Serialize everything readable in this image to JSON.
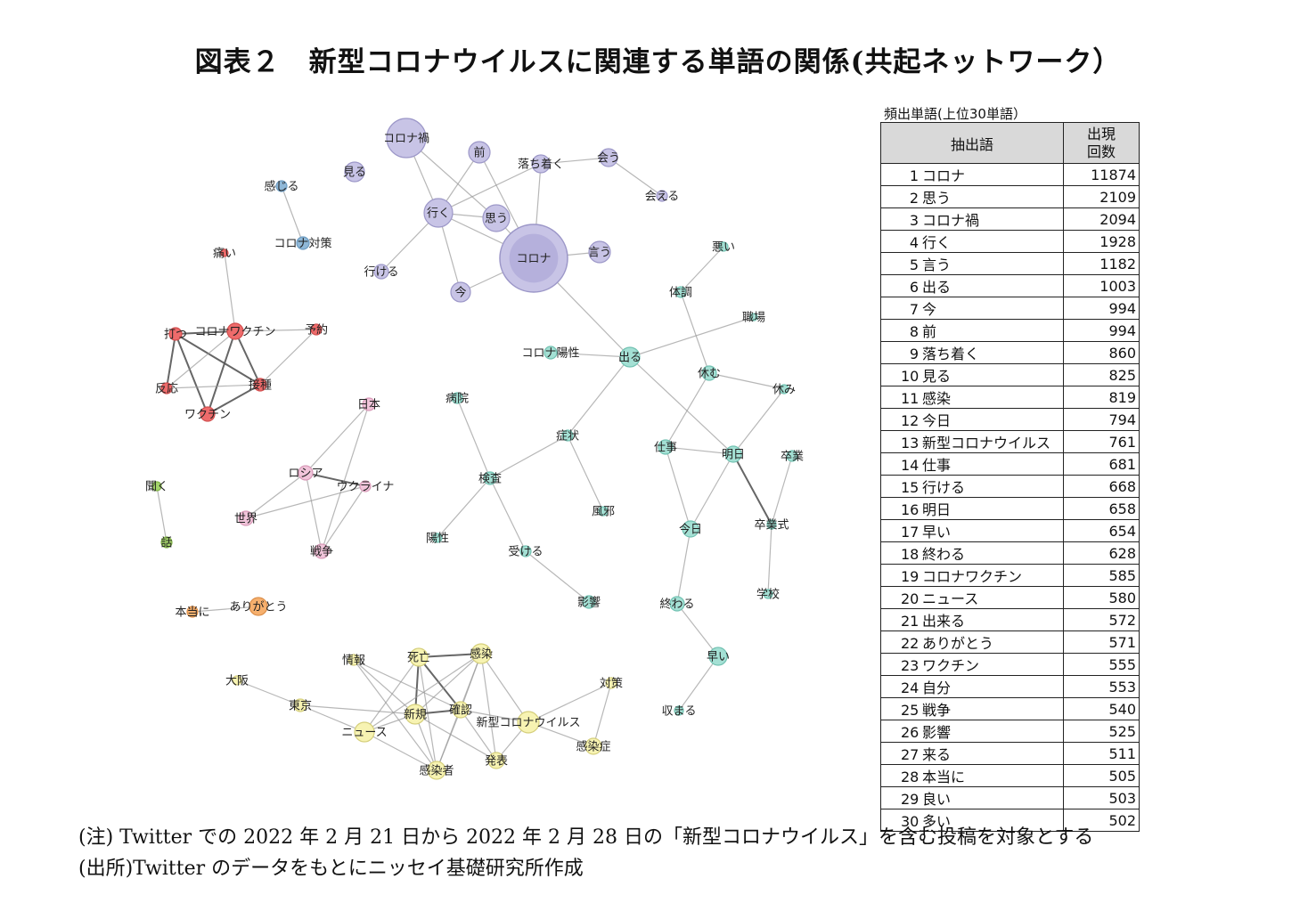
{
  "title": "図表２　新型コロナウイルスに関連する単語の関係(共起ネットワーク）",
  "network": {
    "edge_color": "#999999",
    "edge_strong_color": "#555555",
    "groups": {
      "purple": {
        "fill": "#c8c4e6",
        "stroke": "#9c97c8"
      },
      "blue": {
        "fill": "#8fb8d8",
        "stroke": "#6d9cc2"
      },
      "red": {
        "fill": "#ee6b6b",
        "stroke": "#d24f4f"
      },
      "pink": {
        "fill": "#f1c4da",
        "stroke": "#d89ab8"
      },
      "teal": {
        "fill": "#a4e0d4",
        "stroke": "#72c2b2"
      },
      "green": {
        "fill": "#a4d46a",
        "stroke": "#82b448"
      },
      "orange": {
        "fill": "#f6b06e",
        "stroke": "#dc8f4a"
      },
      "yellow": {
        "fill": "#f7f3b2",
        "stroke": "#d5cf7c"
      }
    },
    "nodes": [
      {
        "id": "n1",
        "label": "コロナ禍",
        "group": "purple"
      },
      {
        "id": "n2",
        "label": "前",
        "group": "purple"
      },
      {
        "id": "n3",
        "label": "落ち着く",
        "group": "purple"
      },
      {
        "id": "n4",
        "label": "会う",
        "group": "purple"
      },
      {
        "id": "n5",
        "label": "会える",
        "group": "purple"
      },
      {
        "id": "n6",
        "label": "見る",
        "group": "purple"
      },
      {
        "id": "n7",
        "label": "行く",
        "group": "purple"
      },
      {
        "id": "n8",
        "label": "思う",
        "group": "purple"
      },
      {
        "id": "n9",
        "label": "コロナ",
        "group": "purple"
      },
      {
        "id": "n10",
        "label": "言う",
        "group": "purple"
      },
      {
        "id": "n11",
        "label": "行ける",
        "group": "purple"
      },
      {
        "id": "n12",
        "label": "今",
        "group": "purple"
      },
      {
        "id": "n13",
        "label": "感じる",
        "group": "blue"
      },
      {
        "id": "n14",
        "label": "コロナ対策",
        "group": "blue"
      },
      {
        "id": "n15",
        "label": "痛い",
        "group": "red"
      },
      {
        "id": "n16",
        "label": "打つ",
        "group": "red"
      },
      {
        "id": "n17",
        "label": "コロナワクチン",
        "group": "red"
      },
      {
        "id": "n18",
        "label": "予約",
        "group": "red"
      },
      {
        "id": "n19",
        "label": "反応",
        "group": "red"
      },
      {
        "id": "n20",
        "label": "接種",
        "group": "red"
      },
      {
        "id": "n21",
        "label": "ワクチン",
        "group": "red"
      },
      {
        "id": "n22",
        "label": "日本",
        "group": "pink"
      },
      {
        "id": "n23",
        "label": "ロシア",
        "group": "pink"
      },
      {
        "id": "n24",
        "label": "ウクライナ",
        "group": "pink"
      },
      {
        "id": "n25",
        "label": "世界",
        "group": "pink"
      },
      {
        "id": "n26",
        "label": "戦争",
        "group": "pink"
      },
      {
        "id": "n27",
        "label": "悪い",
        "group": "teal"
      },
      {
        "id": "n28",
        "label": "体調",
        "group": "teal"
      },
      {
        "id": "n29",
        "label": "職場",
        "group": "teal"
      },
      {
        "id": "n30",
        "label": "コロナ陽性",
        "group": "teal"
      },
      {
        "id": "n31",
        "label": "出る",
        "group": "teal"
      },
      {
        "id": "n32",
        "label": "休む",
        "group": "teal"
      },
      {
        "id": "n33",
        "label": "休み",
        "group": "teal"
      },
      {
        "id": "n34",
        "label": "病院",
        "group": "teal"
      },
      {
        "id": "n35",
        "label": "症状",
        "group": "teal"
      },
      {
        "id": "n36",
        "label": "仕事",
        "group": "teal"
      },
      {
        "id": "n37",
        "label": "明日",
        "group": "teal"
      },
      {
        "id": "n38",
        "label": "卒業",
        "group": "teal"
      },
      {
        "id": "n39",
        "label": "検査",
        "group": "teal"
      },
      {
        "id": "n40",
        "label": "風邪",
        "group": "teal"
      },
      {
        "id": "n41",
        "label": "今日",
        "group": "teal"
      },
      {
        "id": "n42",
        "label": "卒業式",
        "group": "teal"
      },
      {
        "id": "n43",
        "label": "陽性",
        "group": "teal"
      },
      {
        "id": "n44",
        "label": "受ける",
        "group": "teal"
      },
      {
        "id": "n45",
        "label": "学校",
        "group": "teal"
      },
      {
        "id": "n46",
        "label": "影響",
        "group": "teal"
      },
      {
        "id": "n47",
        "label": "終わる",
        "group": "teal"
      },
      {
        "id": "n48",
        "label": "早い",
        "group": "teal"
      },
      {
        "id": "n49",
        "label": "収まる",
        "group": "teal"
      },
      {
        "id": "n50",
        "label": "聞く",
        "group": "green"
      },
      {
        "id": "n51",
        "label": "話",
        "group": "green"
      },
      {
        "id": "n52",
        "label": "本当に",
        "group": "orange"
      },
      {
        "id": "n53",
        "label": "ありがとう",
        "group": "orange"
      },
      {
        "id": "n54",
        "label": "情報",
        "group": "yellow"
      },
      {
        "id": "n55",
        "label": "死亡",
        "group": "yellow"
      },
      {
        "id": "n56",
        "label": "感染",
        "group": "yellow"
      },
      {
        "id": "n57",
        "label": "大阪",
        "group": "yellow"
      },
      {
        "id": "n58",
        "label": "対策",
        "group": "yellow"
      },
      {
        "id": "n59",
        "label": "東京",
        "group": "yellow"
      },
      {
        "id": "n60",
        "label": "新規",
        "group": "yellow"
      },
      {
        "id": "n61",
        "label": "確認",
        "group": "yellow"
      },
      {
        "id": "n62",
        "label": "新型コロナウイルス",
        "group": "yellow"
      },
      {
        "id": "n63",
        "label": "ニュース",
        "group": "yellow"
      },
      {
        "id": "n64",
        "label": "感染症",
        "group": "yellow"
      },
      {
        "id": "n65",
        "label": "感染者",
        "group": "yellow"
      },
      {
        "id": "n66",
        "label": "発表",
        "group": "yellow"
      }
    ],
    "edges": [
      [
        "n1",
        "n7",
        1
      ],
      [
        "n1",
        "n8",
        1
      ],
      [
        "n2",
        "n7",
        1
      ],
      [
        "n2",
        "n9",
        1
      ],
      [
        "n3",
        "n7",
        1
      ],
      [
        "n3",
        "n9",
        1
      ],
      [
        "n3",
        "n4",
        1
      ],
      [
        "n4",
        "n5",
        1
      ],
      [
        "n7",
        "n8",
        1
      ],
      [
        "n7",
        "n9",
        1
      ],
      [
        "n8",
        "n9",
        1
      ],
      [
        "n9",
        "n10",
        1
      ],
      [
        "n9",
        "n12",
        1
      ],
      [
        "n7",
        "n11",
        1
      ],
      [
        "n7",
        "n12",
        1
      ],
      [
        "n9",
        "n31",
        1
      ],
      [
        "n13",
        "n14",
        1
      ],
      [
        "n15",
        "n17",
        1
      ],
      [
        "n16",
        "n17",
        2
      ],
      [
        "n16",
        "n19",
        2
      ],
      [
        "n16",
        "n21",
        2
      ],
      [
        "n16",
        "n20",
        2
      ],
      [
        "n17",
        "n18",
        1
      ],
      [
        "n17",
        "n20",
        2
      ],
      [
        "n17",
        "n21",
        2
      ],
      [
        "n17",
        "n19",
        1
      ],
      [
        "n18",
        "n20",
        1
      ],
      [
        "n19",
        "n20",
        1
      ],
      [
        "n20",
        "n21",
        2
      ],
      [
        "n22",
        "n23",
        1
      ],
      [
        "n22",
        "n26",
        1
      ],
      [
        "n23",
        "n24",
        2
      ],
      [
        "n23",
        "n25",
        1
      ],
      [
        "n23",
        "n26",
        1
      ],
      [
        "n24",
        "n25",
        1
      ],
      [
        "n24",
        "n26",
        1
      ],
      [
        "n27",
        "n28",
        1
      ],
      [
        "n28",
        "n32",
        1
      ],
      [
        "n29",
        "n31",
        1
      ],
      [
        "n30",
        "n31",
        1
      ],
      [
        "n31",
        "n35",
        1
      ],
      [
        "n31",
        "n37",
        1
      ],
      [
        "n32",
        "n33",
        1
      ],
      [
        "n32",
        "n36",
        1
      ],
      [
        "n34",
        "n39",
        1
      ],
      [
        "n35",
        "n39",
        1
      ],
      [
        "n35",
        "n40",
        1
      ],
      [
        "n39",
        "n43",
        1
      ],
      [
        "n39",
        "n44",
        1
      ],
      [
        "n44",
        "n46",
        1
      ],
      [
        "n36",
        "n37",
        1
      ],
      [
        "n37",
        "n41",
        1
      ],
      [
        "n37",
        "n42",
        2
      ],
      [
        "n38",
        "n42",
        1
      ],
      [
        "n33",
        "n37",
        1
      ],
      [
        "n41",
        "n36",
        1
      ],
      [
        "n41",
        "n47",
        1
      ],
      [
        "n47",
        "n48",
        1
      ],
      [
        "n48",
        "n49",
        1
      ],
      [
        "n42",
        "n45",
        1
      ],
      [
        "n50",
        "n51",
        1
      ],
      [
        "n52",
        "n53",
        1
      ],
      [
        "n54",
        "n60",
        1
      ],
      [
        "n55",
        "n56",
        2
      ],
      [
        "n55",
        "n60",
        2
      ],
      [
        "n55",
        "n61",
        2
      ],
      [
        "n55",
        "n63",
        1
      ],
      [
        "n55",
        "n65",
        1
      ],
      [
        "n56",
        "n60",
        1
      ],
      [
        "n56",
        "n61",
        1
      ],
      [
        "n56",
        "n62",
        1
      ],
      [
        "n56",
        "n63",
        1
      ],
      [
        "n56",
        "n65",
        1
      ],
      [
        "n56",
        "n66",
        1
      ],
      [
        "n57",
        "n59",
        1
      ],
      [
        "n59",
        "n63",
        1
      ],
      [
        "n60",
        "n61",
        2
      ],
      [
        "n60",
        "n63",
        1
      ],
      [
        "n60",
        "n65",
        1
      ],
      [
        "n60",
        "n66",
        1
      ],
      [
        "n61",
        "n62",
        1
      ],
      [
        "n61",
        "n65",
        1
      ],
      [
        "n61",
        "n66",
        1
      ],
      [
        "n62",
        "n64",
        1
      ],
      [
        "n62",
        "n58",
        1
      ],
      [
        "n58",
        "n64",
        1
      ],
      [
        "n62",
        "n66",
        1
      ],
      [
        "n63",
        "n65",
        1
      ],
      [
        "n54",
        "n65",
        1
      ],
      [
        "n54",
        "n61",
        1
      ],
      [
        "n59",
        "n60",
        1
      ]
    ]
  },
  "freq_table": {
    "caption": "頻出単語(上位30単語）",
    "header_word": "抽出語",
    "header_count_line1": "出現",
    "header_count_line2": "回数",
    "rows": [
      {
        "rank": "1",
        "word": "コロナ",
        "count": "11874"
      },
      {
        "rank": "2",
        "word": "思う",
        "count": "2109"
      },
      {
        "rank": "3",
        "word": "コロナ禍",
        "count": "2094"
      },
      {
        "rank": "4",
        "word": "行く",
        "count": "1928"
      },
      {
        "rank": "5",
        "word": "言う",
        "count": "1182"
      },
      {
        "rank": "6",
        "word": "出る",
        "count": "1003"
      },
      {
        "rank": "7",
        "word": "今",
        "count": "994"
      },
      {
        "rank": "8",
        "word": "前",
        "count": "994"
      },
      {
        "rank": "9",
        "word": "落ち着く",
        "count": "860"
      },
      {
        "rank": "10",
        "word": "見る",
        "count": "825"
      },
      {
        "rank": "11",
        "word": "感染",
        "count": "819"
      },
      {
        "rank": "12",
        "word": "今日",
        "count": "794"
      },
      {
        "rank": "13",
        "word": "新型コロナウイルス",
        "count": "761"
      },
      {
        "rank": "14",
        "word": "仕事",
        "count": "681"
      },
      {
        "rank": "15",
        "word": "行ける",
        "count": "668"
      },
      {
        "rank": "16",
        "word": "明日",
        "count": "658"
      },
      {
        "rank": "17",
        "word": "早い",
        "count": "654"
      },
      {
        "rank": "18",
        "word": "終わる",
        "count": "628"
      },
      {
        "rank": "19",
        "word": "コロナワクチン",
        "count": "585"
      },
      {
        "rank": "20",
        "word": "ニュース",
        "count": "580"
      },
      {
        "rank": "21",
        "word": "出来る",
        "count": "572"
      },
      {
        "rank": "22",
        "word": "ありがとう",
        "count": "571"
      },
      {
        "rank": "23",
        "word": "ワクチン",
        "count": "555"
      },
      {
        "rank": "24",
        "word": "自分",
        "count": "553"
      },
      {
        "rank": "25",
        "word": "戦争",
        "count": "540"
      },
      {
        "rank": "26",
        "word": "影響",
        "count": "525"
      },
      {
        "rank": "27",
        "word": "来る",
        "count": "511"
      },
      {
        "rank": "28",
        "word": "本当に",
        "count": "505"
      },
      {
        "rank": "29",
        "word": "良い",
        "count": "503"
      },
      {
        "rank": "30",
        "word": "多い",
        "count": "502"
      }
    ]
  },
  "notes": {
    "note": "(注) Twitter での 2022 年 2 月 21 日から 2022 年 2 月 28 日の「新型コロナウイルス」を含む投稿を対象とする",
    "source": "(出所)Twitter のデータをもとにニッセイ基礎研究所作成"
  }
}
